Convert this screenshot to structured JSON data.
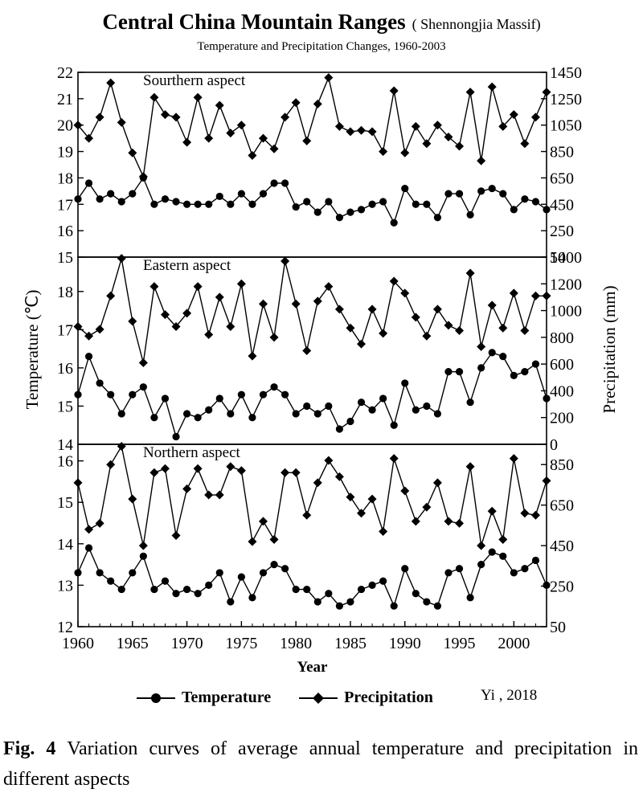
{
  "header": {
    "title": "Central China Mountain Ranges",
    "title_note": "( Shennongjia Massif)",
    "subtitle": "Temperature and Precipitation Changes, 1960-2003"
  },
  "legend": {
    "temperature": "Temperature",
    "precipitation": "Precipitation"
  },
  "credit": "Yi , 2018",
  "caption": {
    "label": "Fig. 4",
    "text": "Variation curves of average annual  temperature and precipitation in different aspects"
  },
  "colors": {
    "line": "#000000",
    "background": "#ffffff"
  },
  "chart_data": {
    "type": "line",
    "xlabel": "Year",
    "ylabel_left": "Temperature (℃)",
    "ylabel_right": "Precipitation (mm)",
    "x": [
      1960,
      1961,
      1962,
      1963,
      1964,
      1965,
      1966,
      1967,
      1968,
      1969,
      1970,
      1971,
      1972,
      1973,
      1974,
      1975,
      1976,
      1977,
      1978,
      1979,
      1980,
      1981,
      1982,
      1983,
      1984,
      1985,
      1986,
      1987,
      1988,
      1989,
      1990,
      1991,
      1992,
      1993,
      1994,
      1995,
      1996,
      1997,
      1998,
      1999,
      2000,
      2001,
      2002,
      2003
    ],
    "x_ticks": [
      1960,
      1965,
      1970,
      1975,
      1980,
      1985,
      1990,
      1995,
      2000
    ],
    "grid": false,
    "legend_position": "bottom",
    "panels": [
      {
        "label": "Sourthern aspect",
        "temp_range": [
          15,
          22
        ],
        "temp_ticks": [
          15,
          16,
          17,
          18,
          19,
          20,
          21,
          22
        ],
        "precip_range": [
          50,
          1450
        ],
        "precip_ticks": [
          50,
          250,
          450,
          650,
          850,
          1050,
          1250,
          1450
        ],
        "series": [
          {
            "name": "Temperature",
            "marker": "circle",
            "values": [
              17.2,
              17.8,
              17.2,
              17.4,
              17.1,
              17.4,
              18.0,
              17.0,
              17.2,
              17.1,
              17.0,
              17.0,
              17.0,
              17.3,
              17.0,
              17.4,
              17.0,
              17.4,
              17.8,
              17.8,
              16.9,
              17.1,
              16.7,
              17.1,
              16.5,
              16.7,
              16.8,
              17.0,
              17.1,
              16.3,
              17.6,
              17.0,
              17.0,
              16.5,
              17.4,
              17.4,
              16.6,
              17.5,
              17.6,
              17.4,
              16.8,
              17.2,
              17.1,
              16.8
            ]
          },
          {
            "name": "Precipitation",
            "marker": "diamond",
            "values": [
              1050,
              950,
              1110,
              1370,
              1070,
              840,
              660,
              1260,
              1130,
              1110,
              920,
              1260,
              950,
              1200,
              990,
              1050,
              820,
              950,
              870,
              1110,
              1220,
              930,
              1210,
              1410,
              1040,
              1000,
              1010,
              1000,
              850,
              1310,
              840,
              1040,
              910,
              1050,
              960,
              890,
              1300,
              780,
              1340,
              1040,
              1130,
              910,
              1110,
              1300
            ]
          }
        ]
      },
      {
        "label": "Eastern aspect",
        "temp_range": [
          14,
          18.9
        ],
        "temp_ticks": [
          14,
          15,
          16,
          17,
          18
        ],
        "precip_range": [
          0,
          1400
        ],
        "precip_ticks": [
          0,
          200,
          400,
          600,
          800,
          1000,
          1200,
          1400
        ],
        "series": [
          {
            "name": "Temperature",
            "marker": "circle",
            "values": [
              15.3,
              16.3,
              15.6,
              15.3,
              14.8,
              15.3,
              15.5,
              14.7,
              15.2,
              14.2,
              14.8,
              14.7,
              14.9,
              15.2,
              14.8,
              15.3,
              14.7,
              15.3,
              15.5,
              15.3,
              14.8,
              15.0,
              14.8,
              15.0,
              14.4,
              14.6,
              15.1,
              14.9,
              15.2,
              14.5,
              15.6,
              14.9,
              15.0,
              14.8,
              15.9,
              15.9,
              15.1,
              16.0,
              16.4,
              16.3,
              15.8,
              15.9,
              16.1,
              15.2
            ]
          },
          {
            "name": "Precipitation",
            "marker": "diamond",
            "values": [
              880,
              810,
              860,
              1110,
              1390,
              920,
              610,
              1180,
              970,
              880,
              980,
              1180,
              820,
              1100,
              880,
              1200,
              660,
              1050,
              800,
              1370,
              1050,
              700,
              1070,
              1180,
              1010,
              870,
              750,
              1010,
              830,
              1220,
              1130,
              950,
              810,
              1010,
              890,
              850,
              1280,
              730,
              1040,
              870,
              1130,
              850,
              1110,
              1110
            ]
          }
        ]
      },
      {
        "label": "Northern aspect",
        "temp_range": [
          12,
          16.4
        ],
        "temp_ticks": [
          12,
          13,
          14,
          15,
          16
        ],
        "precip_range": [
          50,
          950
        ],
        "precip_ticks": [
          50,
          250,
          450,
          650,
          850
        ],
        "series": [
          {
            "name": "Temperature",
            "marker": "circle",
            "values": [
              13.3,
              13.9,
              13.3,
              13.1,
              12.9,
              13.3,
              13.7,
              12.9,
              13.1,
              12.8,
              12.9,
              12.8,
              13.0,
              13.3,
              12.6,
              13.2,
              12.7,
              13.3,
              13.5,
              13.4,
              12.9,
              12.9,
              12.6,
              12.8,
              12.5,
              12.6,
              12.9,
              13.0,
              13.1,
              12.5,
              13.4,
              12.8,
              12.6,
              12.5,
              13.3,
              13.4,
              12.7,
              13.5,
              13.8,
              13.7,
              13.3,
              13.4,
              13.6,
              13.0
            ]
          },
          {
            "name": "Precipitation",
            "marker": "diamond",
            "values": [
              760,
              530,
              560,
              850,
              940,
              680,
              450,
              810,
              830,
              500,
              730,
              830,
              700,
              700,
              840,
              820,
              470,
              570,
              480,
              810,
              810,
              600,
              760,
              870,
              790,
              690,
              610,
              680,
              520,
              880,
              720,
              570,
              640,
              760,
              570,
              560,
              840,
              450,
              620,
              480,
              880,
              610,
              600,
              770
            ]
          }
        ]
      }
    ]
  }
}
